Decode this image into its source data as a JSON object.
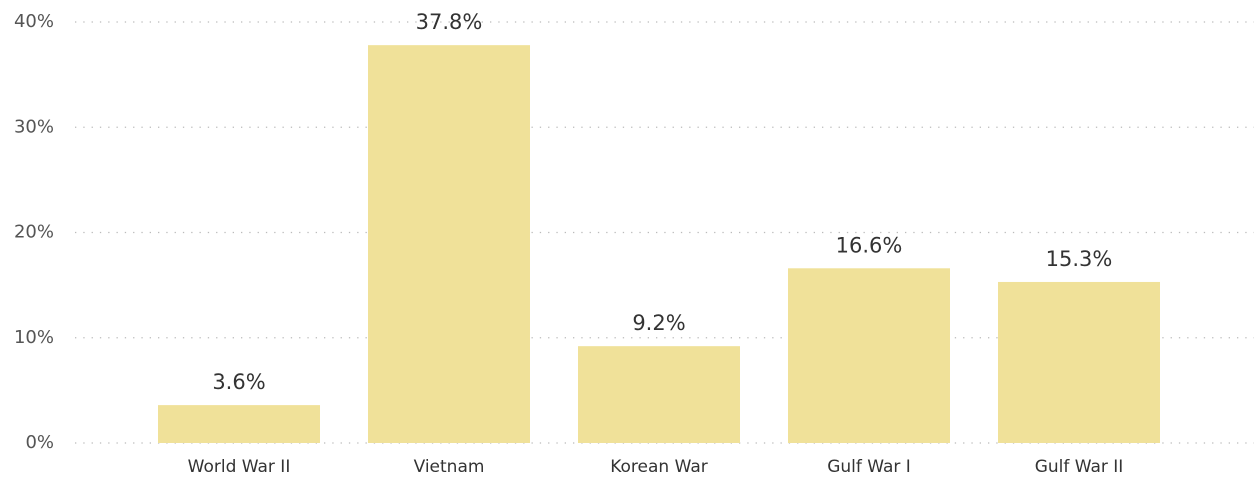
{
  "chart_data": {
    "type": "bar",
    "categories": [
      "World War II",
      "Vietnam",
      "Korean War",
      "Gulf War I",
      "Gulf War II"
    ],
    "values": [
      3.6,
      37.8,
      9.2,
      16.6,
      15.3
    ],
    "value_labels": [
      "3.6%",
      "37.8%",
      "9.2%",
      "16.6%",
      "15.3%"
    ],
    "color": "#f0e199",
    "ylim": [
      0,
      40
    ],
    "yticks": [
      {
        "value": 0,
        "label": "0%"
      },
      {
        "value": 10,
        "label": "10%"
      },
      {
        "value": 20,
        "label": "20%"
      },
      {
        "value": 30,
        "label": "30%"
      },
      {
        "value": 40,
        "label": "40%"
      }
    ],
    "grid": true
  }
}
